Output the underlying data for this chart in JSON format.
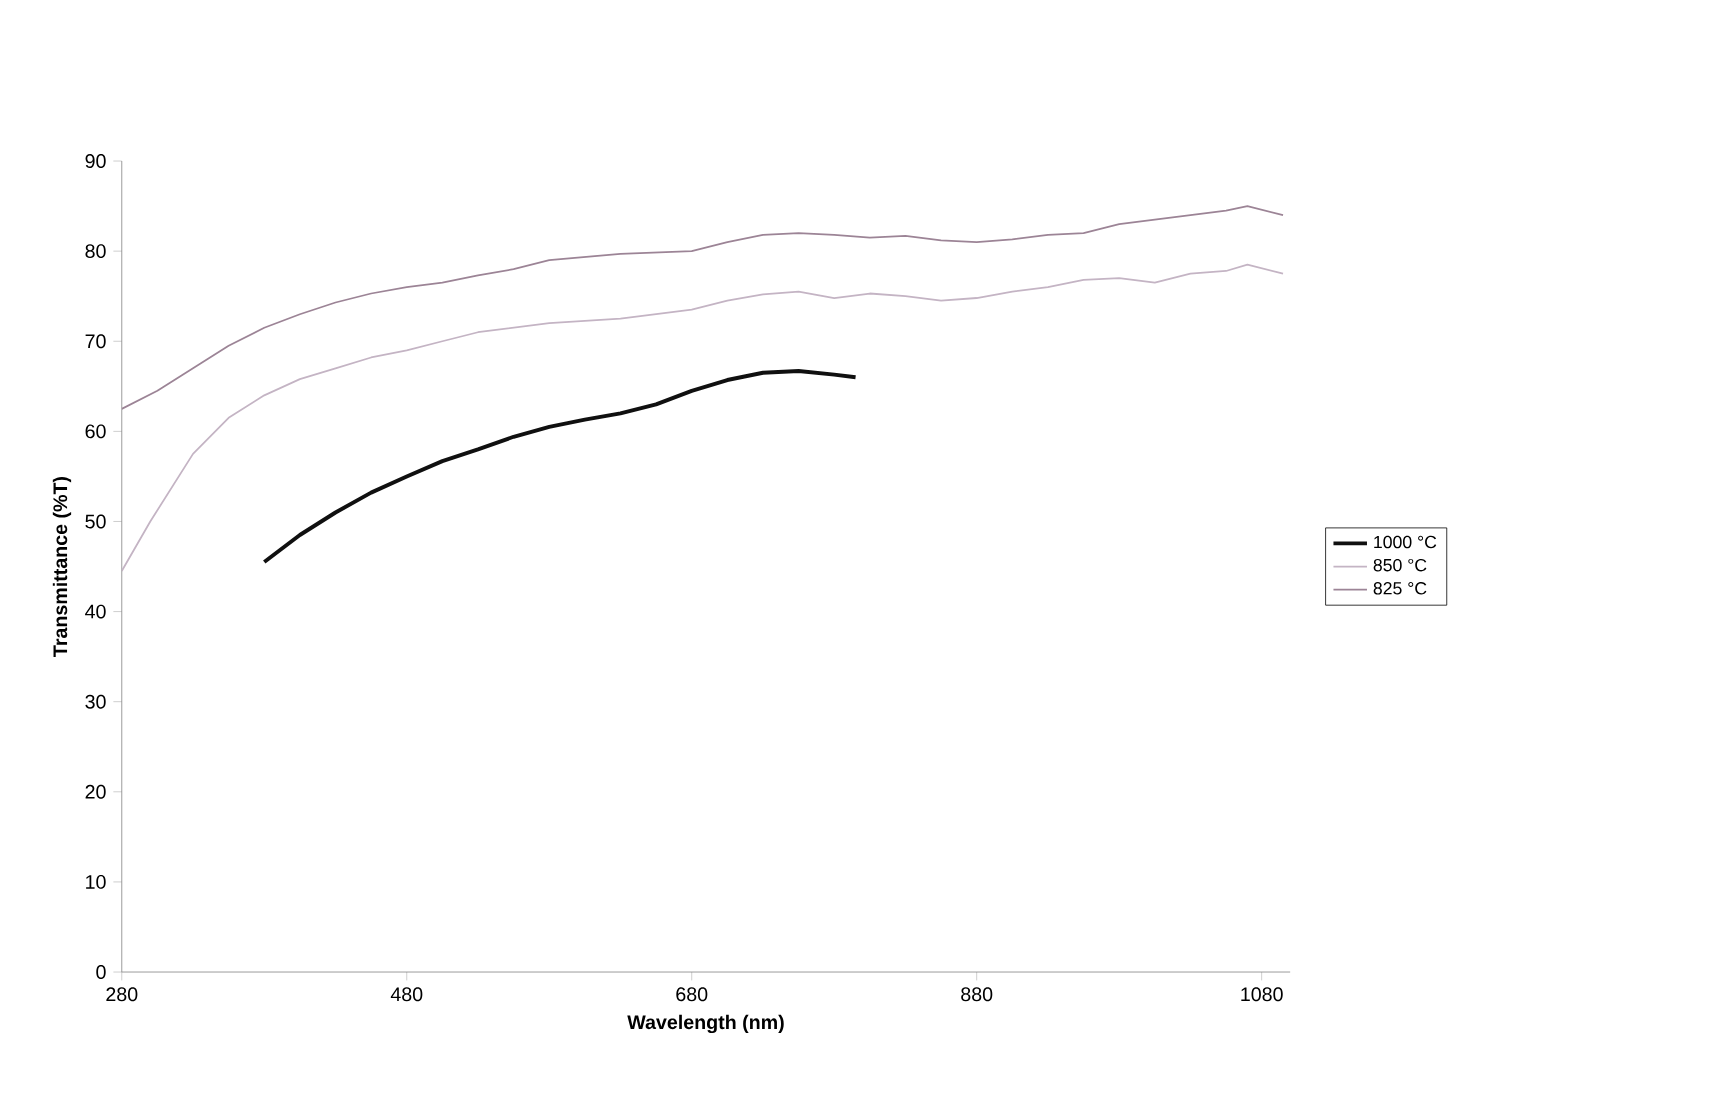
{
  "chart_data": {
    "type": "line",
    "xlabel": "Wavelength (nm)",
    "ylabel": "Transmittance (%T)",
    "xlim": [
      280,
      1100
    ],
    "xticks": [
      280,
      480,
      680,
      880,
      1080
    ],
    "ylim": [
      0,
      90
    ],
    "yticks": [
      0,
      10,
      20,
      30,
      40,
      50,
      60,
      70,
      80,
      90
    ],
    "legend": "right",
    "grid": false,
    "series": [
      {
        "name": "1000 °C",
        "color": "#101010",
        "x": [
          380,
          405,
          430,
          455,
          480,
          505,
          530,
          555,
          580,
          605,
          630,
          655,
          680,
          705,
          730,
          755,
          780,
          795
        ],
        "values": [
          45.5,
          48.5,
          51,
          53.2,
          55,
          56.7,
          58,
          59.4,
          60.5,
          61.3,
          62,
          63,
          64.5,
          65.7,
          66.5,
          66.7,
          66.3,
          66
        ]
      },
      {
        "name": "850 °C",
        "color": "#c4b4c4",
        "x": [
          280,
          300,
          330,
          355,
          380,
          405,
          430,
          455,
          480,
          505,
          530,
          580,
          630,
          680,
          705,
          730,
          755,
          780,
          805,
          830,
          855,
          880,
          905,
          930,
          955,
          980,
          1005,
          1030,
          1055,
          1070,
          1095
        ],
        "values": [
          44.5,
          50,
          57.5,
          61.5,
          64,
          65.8,
          67,
          68.2,
          69,
          70,
          71,
          72,
          72.5,
          73.5,
          74.5,
          75.2,
          75.5,
          74.8,
          75.3,
          75,
          74.5,
          74.8,
          75.5,
          76,
          76.8,
          77,
          76.5,
          77.5,
          77.8,
          78.5,
          77.5
        ]
      },
      {
        "name": "825 °C",
        "color": "#9c8496",
        "x": [
          280,
          305,
          330,
          355,
          380,
          405,
          430,
          455,
          480,
          505,
          530,
          555,
          580,
          630,
          680,
          705,
          730,
          755,
          780,
          805,
          830,
          855,
          880,
          905,
          930,
          955,
          980,
          1005,
          1030,
          1055,
          1070,
          1095
        ],
        "values": [
          62.5,
          64.5,
          67,
          69.5,
          71.5,
          73,
          74.3,
          75.3,
          76,
          76.5,
          77.3,
          78,
          79,
          79.7,
          80,
          81,
          81.8,
          82,
          81.8,
          81.5,
          81.7,
          81.2,
          81,
          81.3,
          81.8,
          82,
          83,
          83.5,
          84,
          84.5,
          85,
          84
        ]
      }
    ]
  }
}
